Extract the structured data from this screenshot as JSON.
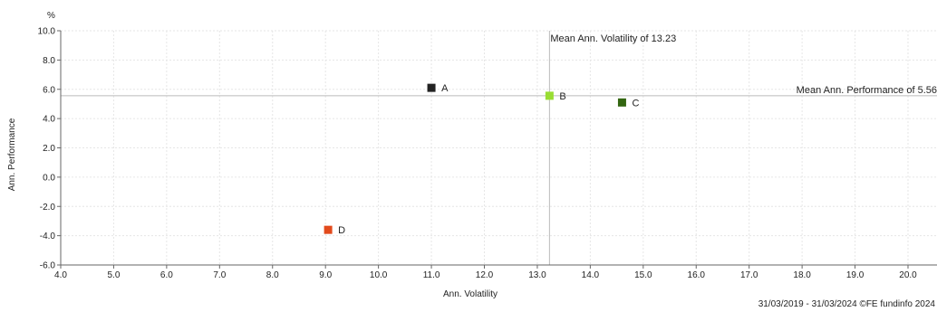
{
  "chart_data": {
    "type": "scatter",
    "title": "",
    "xlabel": "Ann. Volatility",
    "ylabel": "Ann. Performance",
    "y_unit": "%",
    "xlim": [
      4.0,
      20.5
    ],
    "ylim": [
      -6.0,
      10.0
    ],
    "x_ticks": [
      4.0,
      5.0,
      6.0,
      7.0,
      8.0,
      9.0,
      10.0,
      11.0,
      12.0,
      13.0,
      14.0,
      15.0,
      16.0,
      17.0,
      18.0,
      19.0,
      20.0
    ],
    "y_ticks": [
      10.0,
      8.0,
      6.0,
      4.0,
      2.0,
      0.0,
      -2.0,
      -4.0,
      -6.0
    ],
    "grid": true,
    "points": [
      {
        "label": "A",
        "x": 11.0,
        "y": 6.1,
        "color": "#222222"
      },
      {
        "label": "B",
        "x": 13.23,
        "y": 5.56,
        "color": "#99dd33"
      },
      {
        "label": "C",
        "x": 14.6,
        "y": 5.1,
        "color": "#336611"
      },
      {
        "label": "D",
        "x": 9.05,
        "y": -3.6,
        "color": "#e24a1c"
      }
    ],
    "mean_x": {
      "value": 13.23,
      "label": "Mean Ann. Volatility of 13.23"
    },
    "mean_y": {
      "value": 5.56,
      "label": "Mean Ann. Performance of 5.56"
    }
  },
  "footer": "31/03/2019 - 31/03/2024 ©FE fundinfo 2024"
}
